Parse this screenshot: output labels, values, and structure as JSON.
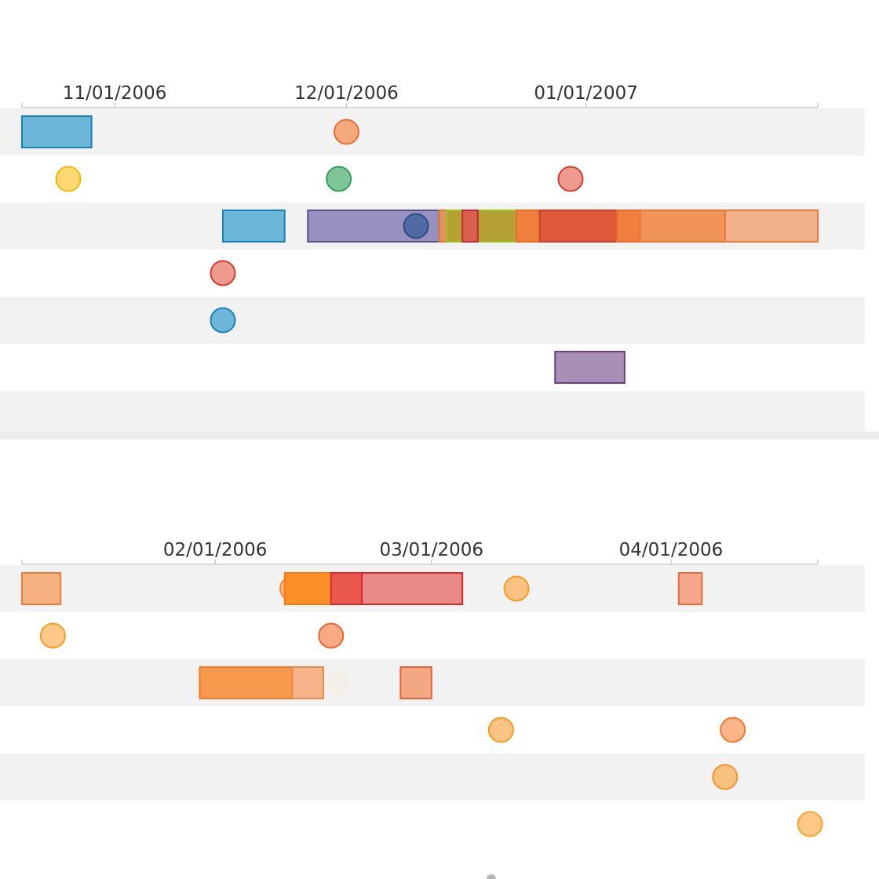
{
  "chart_data": [
    {
      "type": "timeline",
      "lanes": 7,
      "xlim": [
        "2006-10-20",
        "2007-01-31"
      ],
      "ticks": [
        {
          "date": "2006-11-01",
          "label": "11/01/2006"
        },
        {
          "date": "2006-12-01",
          "label": "12/01/2006"
        },
        {
          "date": "2007-01-01",
          "label": "01/01/2007"
        }
      ],
      "events": [
        {
          "lane": 0,
          "start": "2006-10-20",
          "end": "2006-10-29",
          "fill": "#6bb6d9",
          "stroke": "#1b80b8"
        },
        {
          "lane": 0,
          "date": "2006-12-01",
          "fill": "#f4aa7d",
          "stroke": "#e66e3a"
        },
        {
          "lane": 1,
          "date": "2006-10-26",
          "fill": "#fdd873",
          "stroke": "#f1b800"
        },
        {
          "lane": 1,
          "date": "2006-11-30",
          "fill": "#7ec696",
          "stroke": "#2e9e59"
        },
        {
          "lane": 1,
          "date": "2006-12-30",
          "fill": "#ee9a8f",
          "stroke": "#d23c2c"
        },
        {
          "lane": 2,
          "start": "2006-11-15",
          "end": "2006-11-23",
          "fill": "#6bb6d9",
          "stroke": "#1b80b8"
        },
        {
          "lane": 2,
          "start": "2006-11-26",
          "end": "2006-12-13",
          "fill": "#9891bf",
          "stroke": "#5b4e93"
        },
        {
          "lane": 2,
          "date": "2006-12-10",
          "fill": "#4f6aa4",
          "stroke": "#314a85"
        },
        {
          "lane": 2,
          "start": "2006-12-13",
          "end": "2006-12-14",
          "fill": "#e39460",
          "stroke": "#d97838"
        },
        {
          "lane": 2,
          "start": "2006-12-14",
          "end": "2006-12-23",
          "fill": "#b5a033",
          "stroke": "#9ac322"
        },
        {
          "lane": 2,
          "start": "2006-12-16",
          "end": "2006-12-18",
          "fill": "#d8604d",
          "stroke": "#c8283c"
        },
        {
          "lane": 2,
          "start": "2006-12-23",
          "end": "2006-12-26",
          "fill": "#f07f3e",
          "stroke": "#e86a2c"
        },
        {
          "lane": 2,
          "start": "2006-12-26",
          "end": "2007-01-05",
          "fill": "#e0583a",
          "stroke": "#c8402a"
        },
        {
          "lane": 2,
          "start": "2007-01-05",
          "end": "2007-01-08",
          "fill": "#f07f3e",
          "stroke": "#e86a2c"
        },
        {
          "lane": 2,
          "start": "2007-01-08",
          "end": "2007-01-19",
          "fill": "#f29358",
          "stroke": "#e87436"
        },
        {
          "lane": 2,
          "start": "2007-01-19",
          "end": "2007-01-31",
          "fill": "#f2b08a",
          "stroke": "#e8783e"
        },
        {
          "lane": 3,
          "date": "2006-11-15",
          "fill": "#ee9a8f",
          "stroke": "#d23c2c"
        },
        {
          "lane": 4,
          "date": "2006-11-15",
          "fill": "#6bb6d9",
          "stroke": "#1b80b8"
        },
        {
          "lane": 5,
          "start": "2006-12-28",
          "end": "2007-01-06",
          "fill": "#a88fb5",
          "stroke": "#6d3d7e"
        }
      ]
    },
    {
      "type": "timeline",
      "lanes": 6,
      "xlim": [
        "2006-01-07",
        "2006-04-20"
      ],
      "ticks": [
        {
          "date": "2006-02-01",
          "label": "02/01/2006"
        },
        {
          "date": "2006-03-01",
          "label": "03/01/2006"
        },
        {
          "date": "2006-04-01",
          "label": "04/01/2006"
        }
      ],
      "events": [
        {
          "lane": 0,
          "start": "2006-01-07",
          "end": "2006-01-12",
          "fill": "#f5b07f",
          "stroke": "#ef7d3a"
        },
        {
          "lane": 0,
          "date": "2006-02-11",
          "fill": "#f8b987",
          "stroke": "#f08b3e"
        },
        {
          "lane": 0,
          "start": "2006-02-10",
          "end": "2006-02-16",
          "fill": "#fb8f2a",
          "stroke": "#f57a10"
        },
        {
          "lane": 0,
          "start": "2006-02-16",
          "end": "2006-02-20",
          "fill": "#e8584c",
          "stroke": "#d92a30"
        },
        {
          "lane": 0,
          "start": "2006-02-20",
          "end": "2006-03-05",
          "fill": "#e88a88",
          "stroke": "#d9252c"
        },
        {
          "lane": 0,
          "date": "2006-03-12",
          "fill": "#f9c27f",
          "stroke": "#f59a2a"
        },
        {
          "lane": 0,
          "start": "2006-04-02",
          "end": "2006-04-05",
          "fill": "#f4a78b",
          "stroke": "#ea6a3a"
        },
        {
          "lane": 1,
          "date": "2006-01-11",
          "fill": "#fcc989",
          "stroke": "#f59d28"
        },
        {
          "lane": 1,
          "date": "2006-02-16",
          "fill": "#f9a983",
          "stroke": "#e8662f"
        },
        {
          "lane": 2,
          "start": "2006-01-30",
          "end": "2006-02-11",
          "fill": "#f79a4e",
          "stroke": "#ec7a2a"
        },
        {
          "lane": 2,
          "start": "2006-02-11",
          "end": "2006-02-15",
          "fill": "#f7b48b",
          "stroke": "#ef8a44"
        },
        {
          "lane": 2,
          "date": "2006-02-17",
          "fill": "#f3efe6",
          "stroke": "#f6f1e9"
        },
        {
          "lane": 2,
          "start": "2006-02-25",
          "end": "2006-03-01",
          "fill": "#f3a883",
          "stroke": "#e6603a"
        },
        {
          "lane": 3,
          "date": "2006-03-10",
          "fill": "#fcc482",
          "stroke": "#f59a28"
        },
        {
          "lane": 3,
          "date": "2006-04-09",
          "fill": "#fbb587",
          "stroke": "#ee7a36"
        },
        {
          "lane": 4,
          "date": "2006-04-08",
          "fill": "#f7c07e",
          "stroke": "#f0962c"
        },
        {
          "lane": 5,
          "date": "2006-04-19",
          "fill": "#fcca84",
          "stroke": "#f5a232"
        }
      ]
    }
  ]
}
